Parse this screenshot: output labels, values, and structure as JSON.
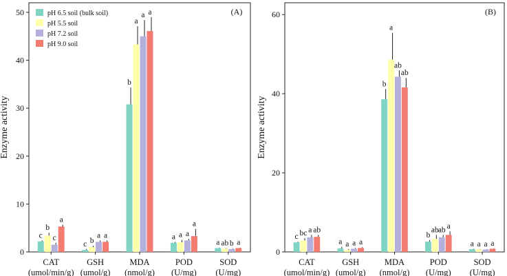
{
  "legend": [
    {
      "label": "pH 6.5 soil (bulk soil)",
      "color": "#7fd4c4"
    },
    {
      "label": "pH  5.5 soil",
      "color": "#ffffaa"
    },
    {
      "label": "pH 7.2 soil",
      "color": "#b3b0dc"
    },
    {
      "label": "pH 9.0 soil",
      "color": "#f37b70"
    }
  ],
  "chart_data": [
    {
      "type": "bar",
      "panel_label": "(A)",
      "ylabel": "Enzyme activity",
      "ylim": [
        0,
        52
      ],
      "yticks": [
        0,
        10,
        20,
        30,
        40,
        50
      ],
      "categories": [
        {
          "name": "CAT",
          "unit": "(umol/min/g)"
        },
        {
          "name": "GSH",
          "unit": "(umol/g)"
        },
        {
          "name": "MDA",
          "unit": "(nmol/g)"
        },
        {
          "name": "POD",
          "unit": "(U/mg)"
        },
        {
          "name": "SOD",
          "unit": "(U/mg)"
        }
      ],
      "series": [
        {
          "name": "pH 6.5 soil (bulk soil)",
          "values": [
            2.2,
            0.4,
            30.8,
            1.9,
            0.8
          ],
          "errors": [
            0.2,
            0.2,
            3.5,
            0.2,
            0.1
          ],
          "letters": [
            "c",
            "c",
            "b",
            "a",
            "a"
          ]
        },
        {
          "name": "pH  5.5 soil",
          "values": [
            3.4,
            1.0,
            43.3,
            2.0,
            0.7
          ],
          "errors": [
            0.6,
            0.3,
            3.8,
            0.5,
            0.1
          ],
          "letters": [
            "b",
            "b",
            "a",
            "a",
            "ab"
          ]
        },
        {
          "name": "pH 7.2 soil",
          "values": [
            1.5,
            2.1,
            45.0,
            2.4,
            0.6
          ],
          "errors": [
            0.4,
            0.3,
            3.4,
            0.3,
            0.1
          ],
          "letters": [
            "c",
            "a",
            "a",
            "a",
            "b"
          ]
        },
        {
          "name": "pH 9.0 soil",
          "values": [
            5.3,
            2.1,
            46.1,
            3.3,
            0.8
          ],
          "errors": [
            0.4,
            0.3,
            2.9,
            1.5,
            0.1
          ],
          "letters": [
            "a",
            "a",
            "a",
            "a",
            "a"
          ]
        }
      ]
    },
    {
      "type": "bar",
      "panel_label": "(B)",
      "ylabel": "Enzyme activity",
      "ylim": [
        0,
        63
      ],
      "yticks": [
        0,
        20,
        40,
        60
      ],
      "categories": [
        {
          "name": "CAT",
          "unit": "(umol/min/g)"
        },
        {
          "name": "GSH",
          "unit": "(umol/g)"
        },
        {
          "name": "MDA",
          "unit": "(nmol/g)"
        },
        {
          "name": "POD",
          "unit": "(U/mg)"
        },
        {
          "name": "SOD",
          "unit": "(U/mg)"
        }
      ],
      "series": [
        {
          "name": "pH 6.5 soil (bulk soil)",
          "values": [
            2.4,
            0.9,
            38.6,
            2.6,
            0.7
          ],
          "errors": [
            0.2,
            0.4,
            2.6,
            0.4,
            0.1
          ],
          "letters": [
            "c",
            "a",
            "b",
            "b",
            "a"
          ]
        },
        {
          "name": "pH  5.5 soil",
          "values": [
            2.9,
            0.5,
            48.6,
            3.3,
            0.6
          ],
          "errors": [
            0.6,
            0.2,
            6.8,
            1.0,
            0.1
          ],
          "letters": [
            "bc",
            "a",
            "a",
            "ab",
            "a"
          ]
        },
        {
          "name": "pH 7.2 soil",
          "values": [
            3.7,
            0.8,
            44.3,
            3.7,
            0.6
          ],
          "errors": [
            0.6,
            0.2,
            1.6,
            0.6,
            0.1
          ],
          "letters": [
            "a",
            "a",
            "ab",
            "ab",
            "a"
          ]
        },
        {
          "name": "pH 9.0 soil",
          "values": [
            3.8,
            1.0,
            41.6,
            4.3,
            0.8
          ],
          "errors": [
            0.5,
            0.2,
            2.4,
            0.9,
            0.1
          ],
          "letters": [
            "ab",
            "a",
            "ab",
            "a",
            "a"
          ]
        }
      ]
    }
  ]
}
